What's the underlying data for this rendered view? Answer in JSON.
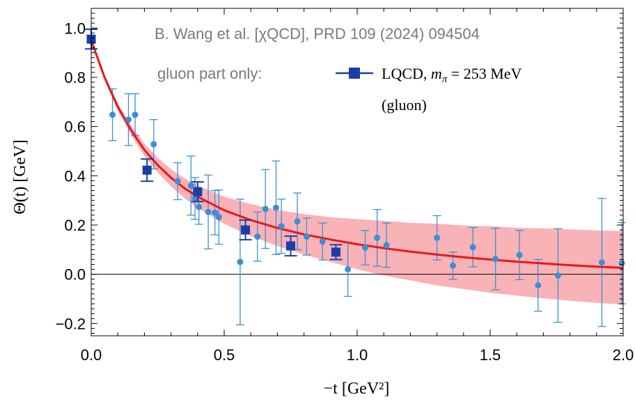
{
  "chart_data": {
    "type": "scatter",
    "xlabel": "−t [GeV²]",
    "ylabel": "Θ(t) [GeV]",
    "xlim": [
      0,
      2.0
    ],
    "ylim": [
      -0.25,
      1.08
    ],
    "x_ticks": [
      "0.0",
      "0.5",
      "1.0",
      "1.5",
      "2.0"
    ],
    "y_ticks": [
      "−0.2",
      "0.0",
      "0.2",
      "0.4",
      "0.6",
      "0.8",
      "1.0"
    ],
    "grid": false,
    "legend_position": "top-right",
    "annotations": {
      "reference": "B. Wang et al. [χQCD], PRD 109 (2024) 094504",
      "note": "gluon part only:"
    },
    "series": [
      {
        "name": "LQCD, m_π = 253 MeV (gluon)",
        "color": "#1a3ea8",
        "marker": "square",
        "points": [
          {
            "x": 0.0,
            "y": 0.955,
            "err": 0.04
          },
          {
            "x": 0.21,
            "y": 0.423,
            "err": 0.045
          },
          {
            "x": 0.4,
            "y": 0.335,
            "err": 0.04
          },
          {
            "x": 0.58,
            "y": 0.18,
            "err": 0.04
          },
          {
            "x": 0.75,
            "y": 0.115,
            "err": 0.04
          },
          {
            "x": 0.92,
            "y": 0.09,
            "err": 0.03
          }
        ]
      },
      {
        "name": "",
        "color": "#3a8fd6",
        "marker": "circle",
        "points": [
          {
            "x": 0.08,
            "y": 0.648,
            "err": 0.105
          },
          {
            "x": 0.14,
            "y": 0.628,
            "err": 0.105
          },
          {
            "x": 0.165,
            "y": 0.648,
            "err": 0.085
          },
          {
            "x": 0.235,
            "y": 0.528,
            "err": 0.1
          },
          {
            "x": 0.325,
            "y": 0.378,
            "err": 0.075
          },
          {
            "x": 0.375,
            "y": 0.36,
            "err": 0.12
          },
          {
            "x": 0.39,
            "y": 0.308,
            "err": 0.085
          },
          {
            "x": 0.405,
            "y": 0.273,
            "err": 0.07
          },
          {
            "x": 0.44,
            "y": 0.253,
            "err": 0.15
          },
          {
            "x": 0.465,
            "y": 0.25,
            "err": 0.09
          },
          {
            "x": 0.48,
            "y": 0.232,
            "err": 0.11
          },
          {
            "x": 0.56,
            "y": 0.05,
            "err": 0.255
          },
          {
            "x": 0.625,
            "y": 0.153,
            "err": 0.1
          },
          {
            "x": 0.655,
            "y": 0.265,
            "err": 0.16
          },
          {
            "x": 0.695,
            "y": 0.27,
            "err": 0.19
          },
          {
            "x": 0.715,
            "y": 0.195,
            "err": 0.11
          },
          {
            "x": 0.775,
            "y": 0.215,
            "err": 0.115
          },
          {
            "x": 0.81,
            "y": 0.153,
            "err": 0.075
          },
          {
            "x": 0.87,
            "y": 0.133,
            "err": 0.075
          },
          {
            "x": 0.965,
            "y": 0.02,
            "err": 0.11
          },
          {
            "x": 1.03,
            "y": 0.108,
            "err": 0.07
          },
          {
            "x": 1.075,
            "y": 0.148,
            "err": 0.115
          },
          {
            "x": 1.11,
            "y": 0.118,
            "err": 0.09
          },
          {
            "x": 1.3,
            "y": 0.148,
            "err": 0.09
          },
          {
            "x": 1.36,
            "y": 0.035,
            "err": 0.055
          },
          {
            "x": 1.435,
            "y": 0.11,
            "err": 0.08
          },
          {
            "x": 1.52,
            "y": 0.062,
            "err": 0.125
          },
          {
            "x": 1.61,
            "y": 0.078,
            "err": 0.1
          },
          {
            "x": 1.68,
            "y": -0.045,
            "err": 0.105
          },
          {
            "x": 1.755,
            "y": -0.005,
            "err": 0.19
          },
          {
            "x": 1.92,
            "y": 0.048,
            "err": 0.26
          },
          {
            "x": 1.995,
            "y": 0.045,
            "err": 0.165
          }
        ]
      }
    ],
    "fit": {
      "color": "#e8171b",
      "band_color": "#f8a5a9",
      "x": [
        0.0,
        0.05,
        0.1,
        0.15,
        0.2,
        0.25,
        0.3,
        0.35,
        0.4,
        0.5,
        0.6,
        0.7,
        0.8,
        0.9,
        1.0,
        1.1,
        1.2,
        1.3,
        1.4,
        1.5,
        1.6,
        1.7,
        1.8,
        1.9,
        2.0
      ],
      "y": [
        0.95,
        0.8,
        0.68,
        0.585,
        0.505,
        0.443,
        0.392,
        0.35,
        0.315,
        0.26,
        0.22,
        0.188,
        0.162,
        0.141,
        0.122,
        0.106,
        0.092,
        0.08,
        0.069,
        0.06,
        0.051,
        0.044,
        0.037,
        0.031,
        0.026
      ],
      "y_low": [
        0.95,
        0.79,
        0.665,
        0.565,
        0.48,
        0.413,
        0.357,
        0.31,
        0.27,
        0.205,
        0.155,
        0.115,
        0.08,
        0.05,
        0.02,
        -0.005,
        -0.025,
        -0.045,
        -0.06,
        -0.075,
        -0.087,
        -0.098,
        -0.108,
        -0.116,
        -0.123
      ],
      "y_high": [
        0.95,
        0.81,
        0.695,
        0.605,
        0.53,
        0.473,
        0.427,
        0.39,
        0.36,
        0.315,
        0.285,
        0.261,
        0.244,
        0.232,
        0.224,
        0.217,
        0.209,
        0.205,
        0.198,
        0.195,
        0.189,
        0.186,
        0.182,
        0.178,
        0.175
      ]
    }
  }
}
